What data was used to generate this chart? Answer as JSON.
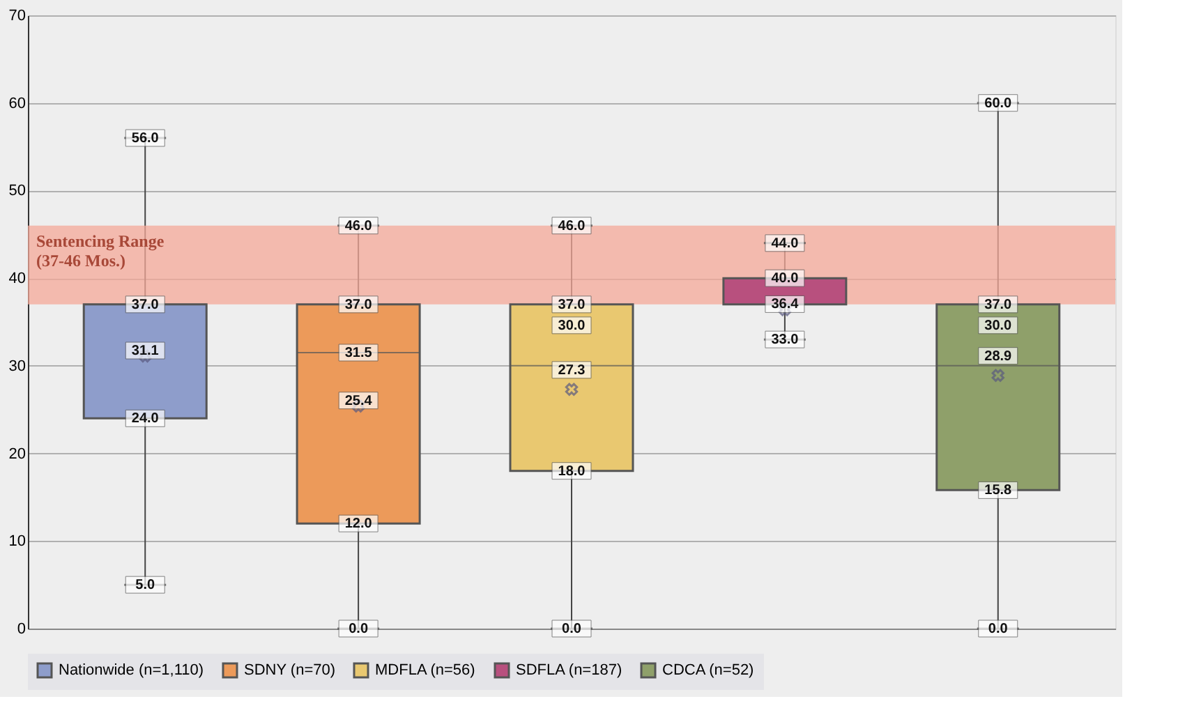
{
  "chart_data": {
    "type": "box",
    "categories": [
      null,
      null,
      null,
      null,
      null
    ],
    "series": [
      {
        "name": "Nationwide (n=1,110)",
        "color": "#8e9dcb",
        "boxes": [
          {
            "low": 5.0,
            "q1": 24.0,
            "median": 37.0,
            "q3": 37.0,
            "high": 56.0,
            "mean": 31.1
          },
          null,
          null,
          null,
          null
        ],
        "value_labels": [
          {
            "low": "5.0",
            "q1": "24.0",
            "median": "37.0",
            "high": "56.0",
            "mean": "31.1"
          },
          null,
          null,
          null,
          null
        ]
      },
      {
        "name": "SDNY (n=70)",
        "color": "#ec9a5a",
        "boxes": [
          null,
          {
            "low": 0.0,
            "q1": 12.0,
            "median": 31.5,
            "q3": 37.0,
            "high": 46.0,
            "mean": 25.4
          },
          null,
          null,
          null
        ],
        "value_labels": [
          null,
          {
            "low": "0.0",
            "q1": "12.0",
            "median": "31.5",
            "q3": "37.0",
            "high": "46.0",
            "mean": "25.4"
          },
          null,
          null,
          null
        ]
      },
      {
        "name": "MDFLA (n=56)",
        "color": "#e9c870",
        "boxes": [
          null,
          null,
          {
            "low": 0.0,
            "q1": 18.0,
            "median": 30.0,
            "q3": 37.0,
            "high": 46.0,
            "mean": 27.3
          },
          null,
          null
        ],
        "value_labels": [
          null,
          null,
          {
            "low": "0.0",
            "q1": "18.0",
            "median": "30.0",
            "q3": "37.0",
            "high": "46.0",
            "mean": "27.3"
          },
          null,
          null
        ]
      },
      {
        "name": "SDFLA (n=187)",
        "color": "#b8507e",
        "boxes": [
          null,
          null,
          null,
          {
            "low": 33.0,
            "q1": 37.0,
            "median": 40.0,
            "q3": 40.0,
            "high": 44.0,
            "mean": 36.4
          },
          null
        ],
        "value_labels": [
          null,
          null,
          null,
          {
            "low": "33.0",
            "median": "40.0",
            "high": "44.0",
            "mean": "36.4"
          },
          null
        ]
      },
      {
        "name": "CDCA (n=52)",
        "color": "#8fa06a",
        "boxes": [
          null,
          null,
          null,
          null,
          {
            "low": 0.0,
            "q1": 15.8,
            "median": 30.0,
            "q3": 37.0,
            "high": 60.0,
            "mean": 28.9
          }
        ],
        "value_labels": [
          null,
          null,
          null,
          null,
          {
            "low": "0.0",
            "q1": "15.8",
            "median": "30.0",
            "q3": "37.0",
            "high": "60.0",
            "mean": "28.9"
          }
        ]
      }
    ],
    "ylim": [
      0,
      70
    ],
    "yticks": [
      0,
      10,
      20,
      30,
      40,
      50,
      60,
      70
    ],
    "grid": "y",
    "legend": "bottom",
    "marker": "cross",
    "bands": [
      {
        "axis": "y",
        "from": 37,
        "to": 46,
        "label": "Sentencing Range\n(37-46 Mos.)",
        "color": "#f4a898"
      }
    ]
  }
}
